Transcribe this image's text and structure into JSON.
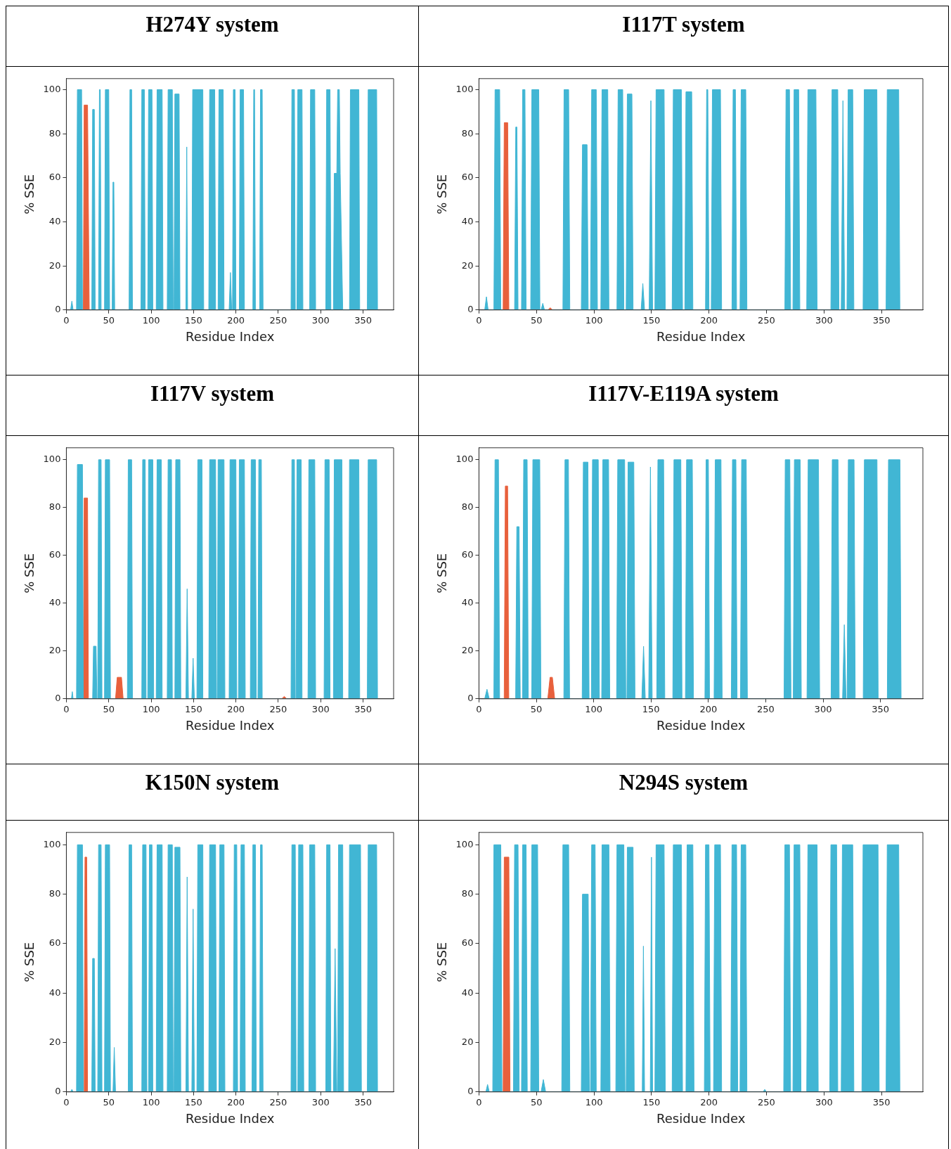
{
  "chart_data": [
    {
      "type": "area",
      "title": "H274Y system",
      "xlabel": "Residue Index",
      "ylabel": "% SSE",
      "xlim": [
        0,
        386
      ],
      "xticks": [
        0,
        50,
        100,
        150,
        200,
        250,
        300,
        350
      ],
      "ylim": [
        0,
        105
      ],
      "yticks": [
        0,
        20,
        40,
        60,
        80,
        100
      ],
      "series": [
        {
          "color": "#41b6d4",
          "x": [
            5,
            6.5,
            8,
            12,
            13,
            18,
            19,
            30,
            31,
            33,
            34,
            38,
            39,
            40,
            41,
            45,
            46,
            50,
            51,
            54,
            55,
            56,
            57,
            74,
            75,
            77,
            78,
            88,
            89,
            92,
            93,
            96,
            97,
            101,
            102,
            106,
            107,
            113,
            114,
            119,
            120,
            125,
            126,
            127,
            128,
            133,
            134,
            141,
            142,
            143,
            148,
            149,
            161,
            162,
            168,
            169,
            175,
            176,
            179,
            180,
            185,
            186,
            192,
            193.5,
            195,
            196,
            197,
            199,
            200,
            204,
            205,
            209,
            210,
            220,
            221,
            222,
            223,
            228,
            229,
            231,
            232,
            265,
            266,
            269,
            270,
            272,
            273,
            278,
            279,
            287,
            288,
            293,
            294,
            306,
            307,
            311,
            312,
            315,
            316,
            319,
            320,
            322,
            323,
            326,
            334,
            335,
            345,
            346,
            355,
            356,
            366,
            367
          ],
          "values": [
            0,
            4,
            0,
            0,
            100,
            100,
            0,
            0,
            91,
            91,
            0,
            0,
            100,
            100,
            0,
            0,
            100,
            100,
            0,
            0,
            58,
            58,
            0,
            0,
            100,
            100,
            0,
            0,
            100,
            100,
            0,
            0,
            100,
            100,
            0,
            0,
            100,
            100,
            0,
            0,
            100,
            100,
            0,
            0,
            98,
            98,
            0,
            0,
            74,
            0,
            0,
            100,
            100,
            0,
            0,
            100,
            100,
            0,
            0,
            100,
            100,
            0,
            0,
            17,
            0,
            0,
            100,
            100,
            0,
            0,
            100,
            100,
            0,
            0,
            100,
            100,
            0,
            0,
            100,
            100,
            0,
            0,
            100,
            100,
            0,
            0,
            100,
            100,
            0,
            0,
            100,
            100,
            0,
            0,
            100,
            100,
            0,
            0,
            62,
            62,
            100,
            100,
            62,
            0,
            0,
            100,
            100,
            0,
            0,
            100,
            100,
            0
          ]
        },
        {
          "color": "#e8603c",
          "x": [
            20,
            21,
            25,
            27
          ],
          "values": [
            0,
            93,
            93,
            0
          ]
        }
      ]
    },
    {
      "type": "area",
      "title": "I117T system",
      "xlabel": "Residue Index",
      "ylabel": "% SSE",
      "xlim": [
        0,
        386
      ],
      "xticks": [
        0,
        50,
        100,
        150,
        200,
        250,
        300,
        350
      ],
      "ylim": [
        0,
        105
      ],
      "yticks": [
        0,
        20,
        40,
        60,
        80,
        100
      ],
      "series": [
        {
          "color": "#41b6d4",
          "x": [
            5,
            6.5,
            8,
            13,
            14,
            18,
            19,
            31,
            32,
            33,
            34,
            37,
            38,
            40,
            41,
            45,
            46,
            52,
            53,
            54,
            55.5,
            57,
            73,
            74,
            78,
            79,
            89,
            90,
            94,
            95,
            97,
            98,
            102,
            103,
            106,
            107,
            112,
            113,
            120,
            121,
            125,
            126,
            128,
            129,
            133,
            134,
            141,
            142.5,
            144,
            148,
            149.5,
            151,
            153,
            154,
            161,
            162,
            168,
            169,
            176,
            177,
            179,
            180,
            185,
            186,
            197,
            198,
            199,
            200,
            202,
            203,
            210,
            211,
            220,
            221,
            223,
            224,
            227,
            228,
            232,
            233,
            266,
            267,
            270,
            271,
            273,
            274,
            278,
            279,
            285,
            286,
            293,
            294,
            306,
            307,
            312,
            313,
            315,
            316.5,
            318,
            320,
            321,
            325,
            326,
            334,
            335,
            346,
            347,
            354,
            355,
            365,
            366
          ],
          "values": [
            0,
            6,
            0,
            0,
            100,
            100,
            0,
            0,
            83,
            83,
            0,
            0,
            100,
            100,
            0,
            0,
            100,
            100,
            0,
            0,
            3,
            0,
            0,
            100,
            100,
            0,
            0,
            75,
            75,
            0,
            0,
            100,
            100,
            0,
            0,
            100,
            100,
            0,
            0,
            100,
            100,
            0,
            0,
            98,
            98,
            0,
            0,
            12,
            0,
            0,
            95,
            0,
            0,
            100,
            100,
            0,
            0,
            100,
            100,
            0,
            0,
            99,
            99,
            0,
            0,
            100,
            100,
            0,
            0,
            100,
            100,
            0,
            0,
            100,
            100,
            0,
            0,
            100,
            100,
            0,
            0,
            100,
            100,
            0,
            0,
            100,
            100,
            0,
            0,
            100,
            100,
            0,
            0,
            100,
            100,
            0,
            0,
            95,
            0,
            0,
            100,
            100,
            0,
            0,
            100,
            100,
            0,
            0,
            100,
            100,
            0
          ]
        },
        {
          "color": "#e8603c",
          "x": [
            21,
            22,
            25,
            26,
            60,
            62,
            64
          ],
          "values": [
            0,
            85,
            85,
            0,
            0,
            1,
            0
          ]
        }
      ]
    },
    {
      "type": "area",
      "title": "I117V system",
      "xlabel": "Residue Index",
      "ylabel": "% SSE",
      "xlim": [
        0,
        386
      ],
      "xticks": [
        0,
        50,
        100,
        150,
        200,
        250,
        300,
        350
      ],
      "ylim": [
        0,
        105
      ],
      "yticks": [
        0,
        20,
        40,
        60,
        80,
        100
      ],
      "series": [
        {
          "color": "#41b6d4",
          "x": [
            6,
            7,
            8,
            12,
            13,
            19,
            20,
            31,
            32,
            35,
            36,
            37,
            38,
            41,
            42,
            45,
            46,
            51,
            52,
            72,
            73,
            77,
            78,
            89,
            90,
            93,
            94,
            96,
            97,
            102,
            103,
            106,
            107,
            112,
            113,
            119,
            120,
            124,
            125,
            128,
            129,
            134,
            135,
            141,
            142.5,
            144,
            148,
            149.5,
            151,
            154,
            155,
            160,
            161,
            168,
            169,
            176,
            177,
            178,
            179,
            186,
            187,
            192,
            193,
            200,
            201,
            203,
            204,
            210,
            211,
            217,
            218,
            223,
            224,
            226,
            227,
            230,
            231,
            265,
            266,
            269,
            270,
            271,
            272,
            277,
            278,
            285,
            286,
            293,
            294,
            304,
            305,
            310,
            311,
            315,
            316,
            325,
            326,
            333,
            334,
            345,
            346,
            355,
            356,
            366,
            367
          ],
          "values": [
            0,
            3,
            0,
            0,
            98,
            98,
            0,
            0,
            22,
            22,
            0,
            0,
            100,
            100,
            0,
            0,
            100,
            100,
            0,
            0,
            100,
            100,
            0,
            0,
            100,
            100,
            0,
            0,
            100,
            100,
            0,
            0,
            100,
            100,
            0,
            0,
            100,
            100,
            0,
            0,
            100,
            100,
            0,
            0,
            46,
            0,
            0,
            17,
            0,
            0,
            100,
            100,
            0,
            0,
            100,
            100,
            0,
            0,
            100,
            100,
            0,
            0,
            100,
            100,
            0,
            0,
            100,
            100,
            0,
            0,
            100,
            100,
            0,
            0,
            100,
            100,
            0,
            0,
            100,
            100,
            0,
            0,
            100,
            100,
            0,
            0,
            100,
            100,
            0,
            0,
            100,
            100,
            0,
            0,
            100,
            100,
            0,
            0,
            100,
            100,
            0,
            0,
            100,
            100,
            0
          ]
        },
        {
          "color": "#e8603c",
          "x": [
            20,
            21,
            25,
            26,
            58,
            60,
            65,
            67,
            254,
            257,
            260
          ],
          "values": [
            0,
            84,
            84,
            0,
            0,
            9,
            9,
            0,
            0,
            1,
            0
          ]
        }
      ]
    },
    {
      "type": "area",
      "title": "I117V-E119A system",
      "xlabel": "Residue Index",
      "ylabel": "% SSE",
      "xlim": [
        0,
        387
      ],
      "xticks": [
        0,
        50,
        100,
        150,
        200,
        250,
        300,
        350
      ],
      "ylim": [
        0,
        105
      ],
      "yticks": [
        0,
        20,
        40,
        60,
        80,
        100
      ],
      "series": [
        {
          "color": "#41b6d4",
          "x": [
            5,
            7,
            9,
            13,
            14,
            17,
            18,
            32,
            33,
            35,
            36,
            38,
            39,
            42,
            43,
            46,
            47,
            53,
            54,
            74,
            75,
            78,
            79,
            90,
            91,
            95,
            96,
            98,
            99,
            104,
            105,
            107,
            108,
            113,
            114,
            120,
            121,
            127,
            128,
            129,
            130,
            135,
            136,
            142,
            143.5,
            145,
            148,
            149.5,
            151,
            155,
            156,
            161,
            162,
            169,
            170,
            176,
            177,
            180,
            181,
            186,
            187,
            197,
            198,
            200,
            201,
            205,
            206,
            211,
            212,
            220,
            221,
            224,
            225,
            228,
            229,
            233,
            234,
            266,
            267,
            271,
            272,
            274,
            275,
            280,
            281,
            286,
            287,
            296,
            297,
            307,
            308,
            313,
            314,
            317,
            318.5,
            320,
            321,
            322,
            327,
            328,
            335,
            336,
            347,
            348,
            356,
            357,
            367,
            368
          ],
          "values": [
            0,
            4,
            0,
            0,
            100,
            100,
            0,
            0,
            72,
            72,
            0,
            0,
            100,
            100,
            0,
            0,
            100,
            100,
            0,
            0,
            100,
            100,
            0,
            0,
            99,
            99,
            0,
            0,
            100,
            100,
            0,
            0,
            100,
            100,
            0,
            0,
            100,
            100,
            0,
            0,
            99,
            99,
            0,
            0,
            22,
            0,
            0,
            97,
            0,
            0,
            100,
            100,
            0,
            0,
            100,
            100,
            0,
            0,
            100,
            100,
            0,
            0,
            100,
            100,
            0,
            0,
            100,
            100,
            0,
            0,
            100,
            100,
            0,
            0,
            100,
            100,
            0,
            0,
            100,
            100,
            0,
            0,
            100,
            100,
            0,
            0,
            100,
            100,
            0,
            0,
            100,
            100,
            0,
            0,
            31,
            0,
            0,
            100,
            100,
            0,
            0,
            100,
            100,
            0,
            0,
            100,
            100,
            0
          ]
        },
        {
          "color": "#e8603c",
          "x": [
            22,
            23,
            25,
            26,
            60,
            62,
            64,
            66
          ],
          "values": [
            0,
            89,
            89,
            0,
            0,
            9,
            9,
            0
          ]
        }
      ]
    },
    {
      "type": "area",
      "title": "K150N system",
      "xlabel": "Residue Index",
      "ylabel": "% SSE",
      "xlim": [
        0,
        386
      ],
      "xticks": [
        0,
        50,
        100,
        150,
        200,
        250,
        300,
        350
      ],
      "ylim": [
        0,
        105
      ],
      "yticks": [
        0,
        20,
        40,
        60,
        80,
        100
      ],
      "series": [
        {
          "color": "#41b6d4",
          "x": [
            5,
            6.5,
            8,
            12,
            13,
            19,
            20,
            30,
            31,
            33,
            34,
            37,
            38,
            41,
            42,
            45,
            46,
            51,
            52,
            55,
            56.5,
            58,
            73,
            74,
            77,
            78,
            89,
            90,
            94,
            95,
            97,
            98,
            101,
            102,
            106,
            107,
            113,
            114,
            119,
            120,
            125,
            126,
            127,
            128,
            134,
            135,
            141,
            142.5,
            144,
            148,
            149.5,
            151,
            154,
            155,
            161,
            162,
            168,
            169,
            176,
            177,
            180,
            181,
            186,
            187,
            197,
            198,
            201,
            202,
            205,
            206,
            210,
            211,
            219,
            220,
            223,
            224,
            228,
            229,
            231,
            232,
            265,
            266,
            270,
            271,
            273,
            274,
            279,
            280,
            286,
            287,
            293,
            294,
            306,
            307,
            311,
            312,
            315,
            317,
            319,
            320,
            321,
            326,
            327,
            333,
            334,
            347,
            348,
            355,
            356,
            366,
            367
          ],
          "values": [
            0,
            1,
            0,
            0,
            100,
            100,
            0,
            0,
            54,
            54,
            0,
            0,
            100,
            100,
            0,
            0,
            100,
            100,
            0,
            0,
            18,
            0,
            0,
            100,
            100,
            0,
            0,
            100,
            100,
            0,
            0,
            100,
            100,
            0,
            0,
            100,
            100,
            0,
            0,
            100,
            100,
            0,
            0,
            99,
            99,
            0,
            0,
            87,
            0,
            0,
            74,
            0,
            0,
            100,
            100,
            0,
            0,
            100,
            100,
            0,
            0,
            100,
            100,
            0,
            0,
            100,
            100,
            0,
            0,
            100,
            100,
            0,
            0,
            100,
            100,
            0,
            0,
            100,
            100,
            0,
            0,
            100,
            100,
            0,
            0,
            100,
            100,
            0,
            0,
            100,
            100,
            0,
            0,
            100,
            100,
            0,
            0,
            58,
            0,
            0,
            100,
            100,
            0,
            0,
            100,
            100,
            0,
            0,
            100,
            100,
            0
          ]
        },
        {
          "color": "#e8603c",
          "x": [
            21,
            22,
            24,
            25
          ],
          "values": [
            0,
            95,
            95,
            0
          ]
        }
      ]
    },
    {
      "type": "area",
      "title": "N294S system",
      "xlabel": "Residue Index",
      "ylabel": "% SSE",
      "xlim": [
        0,
        386
      ],
      "xticks": [
        0,
        50,
        100,
        150,
        200,
        250,
        300,
        350
      ],
      "ylim": [
        0,
        105
      ],
      "yticks": [
        0,
        20,
        40,
        60,
        80,
        100
      ],
      "series": [
        {
          "color": "#41b6d4",
          "x": [
            6,
            7.5,
            9,
            12,
            13,
            19,
            20,
            30,
            31,
            34,
            35,
            37,
            38,
            41,
            42,
            45,
            46,
            51,
            52,
            54,
            56,
            58,
            72,
            73,
            78,
            79,
            89,
            90,
            95,
            96,
            97,
            98,
            101,
            102,
            106,
            107,
            113,
            114,
            119,
            120,
            126,
            127,
            128,
            129,
            134,
            135,
            142,
            143,
            144,
            149,
            150,
            151,
            153,
            154,
            161,
            162,
            168,
            169,
            176,
            177,
            180,
            181,
            186,
            187,
            196,
            197,
            200,
            201,
            204,
            205,
            210,
            211,
            219,
            220,
            224,
            225,
            227,
            228,
            232,
            233,
            247,
            248.5,
            250,
            265,
            266,
            270,
            271,
            273,
            274,
            279,
            280,
            285,
            286,
            294,
            295,
            305,
            306,
            311,
            312,
            315,
            316,
            325,
            326,
            333,
            334,
            347,
            348,
            354,
            355,
            365,
            366
          ],
          "values": [
            0,
            3,
            0,
            0,
            100,
            100,
            0,
            0,
            100,
            100,
            0,
            0,
            100,
            100,
            0,
            0,
            100,
            100,
            0,
            0,
            5,
            0,
            0,
            100,
            100,
            0,
            0,
            80,
            80,
            0,
            0,
            100,
            100,
            0,
            0,
            100,
            100,
            0,
            0,
            100,
            100,
            0,
            0,
            99,
            99,
            0,
            0,
            59,
            0,
            0,
            95,
            0,
            0,
            100,
            100,
            0,
            0,
            100,
            100,
            0,
            0,
            100,
            100,
            0,
            0,
            100,
            100,
            0,
            0,
            100,
            100,
            0,
            0,
            100,
            100,
            0,
            0,
            100,
            100,
            0,
            0,
            1,
            0,
            0,
            100,
            100,
            0,
            0,
            100,
            100,
            0,
            0,
            100,
            100,
            0,
            0,
            100,
            100,
            0,
            0,
            100,
            100,
            0,
            0,
            100,
            100,
            0,
            0,
            100,
            100,
            0
          ]
        },
        {
          "color": "#e8603c",
          "x": [
            21,
            22,
            26,
            27
          ],
          "values": [
            0,
            95,
            95,
            0
          ]
        }
      ]
    }
  ]
}
